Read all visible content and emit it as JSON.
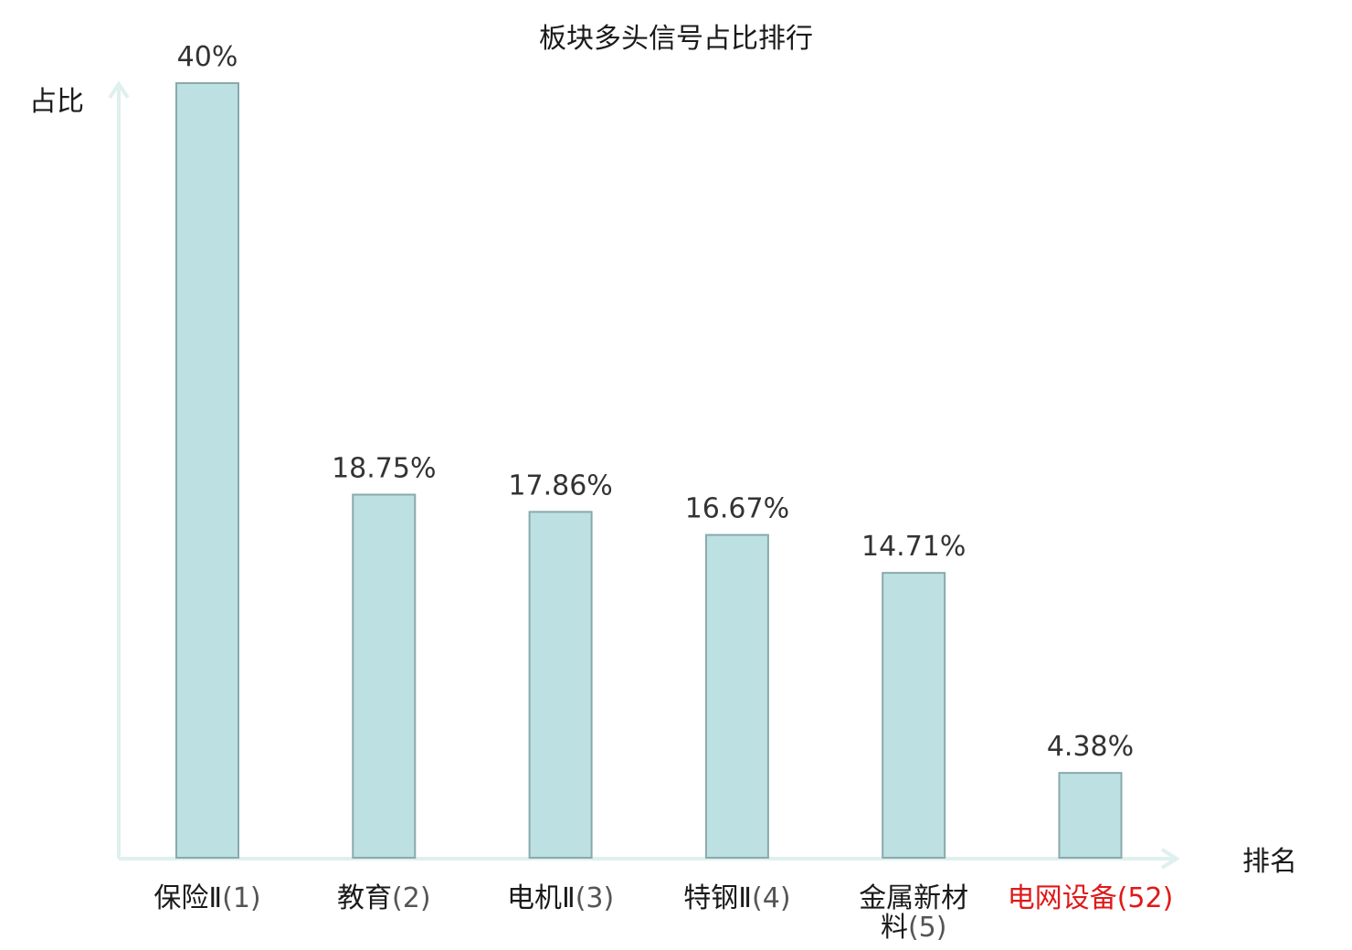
{
  "chart_data": {
    "type": "bar",
    "title": "板块多头信号占比排行",
    "ylabel": "占比",
    "xlabel": "排名",
    "categories": [
      {
        "name": "保险Ⅱ",
        "rank": "(1)",
        "highlight": false
      },
      {
        "name": "教育",
        "rank": "(2)",
        "highlight": false
      },
      {
        "name": "电机Ⅱ",
        "rank": "(3)",
        "highlight": false
      },
      {
        "name": "特钢Ⅱ",
        "rank": "(4)",
        "highlight": false
      },
      {
        "name": "金属新材料",
        "rank": "(5)",
        "highlight": false
      },
      {
        "name": "电网设备",
        "rank": "(52)",
        "highlight": true
      }
    ],
    "values": [
      40,
      18.75,
      17.86,
      16.67,
      14.71,
      4.38
    ],
    "value_labels": [
      "40%",
      "18.75%",
      "17.86%",
      "16.67%",
      "14.71%",
      "4.38%"
    ],
    "ylim": [
      0,
      40
    ],
    "grid": false,
    "colors": {
      "bar_fill": "#bde0e3",
      "bar_stroke": "#8aa9ab",
      "axis": "#dff0ee",
      "highlight_text": "#e0191a",
      "normal_text": "#1a1a1a",
      "rank_text": "#555555"
    }
  }
}
